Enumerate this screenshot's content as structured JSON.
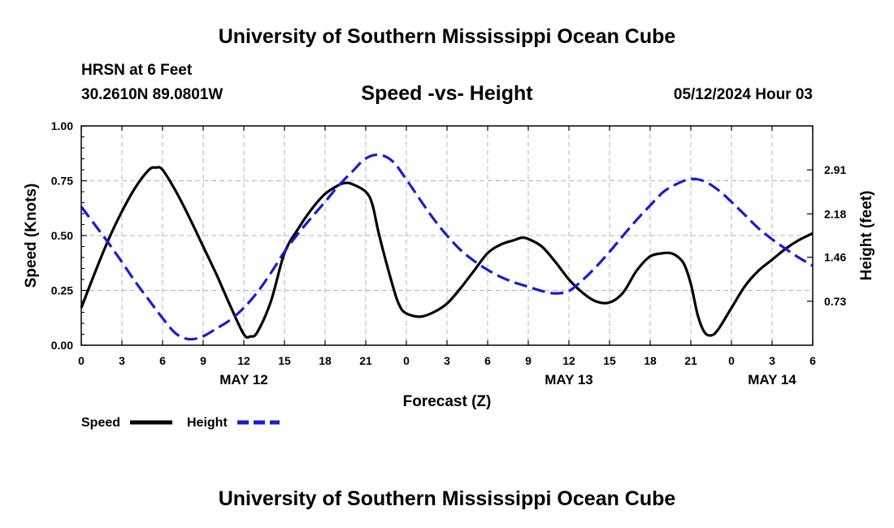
{
  "header": {
    "title_top": "University of Southern Mississippi Ocean Cube",
    "title_bottom": "University of Southern Mississippi Ocean Cube",
    "station": "HRSN at 6 Feet",
    "coords": "30.2610N  89.0801W",
    "plot_title": "Speed -vs- Height",
    "timestamp": "05/12/2024 Hour 03"
  },
  "chart_data": {
    "type": "line",
    "title": "Speed -vs- Height",
    "xlabel": "Forecast (Z)",
    "ylabel": "Speed (Knots)",
    "y2label": "Height (feet)",
    "x_range_hours": [
      0,
      54
    ],
    "ylim": [
      0,
      1.0
    ],
    "y2lim": [
      0,
      3.64
    ],
    "x_ticks": [
      "0",
      "3",
      "6",
      "9",
      "12",
      "15",
      "18",
      "21",
      "0",
      "3",
      "6",
      "9",
      "12",
      "15",
      "18",
      "21",
      "0",
      "3",
      "6"
    ],
    "y_ticks": [
      "0.00",
      "0.25",
      "0.50",
      "0.75",
      "1.00"
    ],
    "y2_ticks": [
      {
        "value": 0.73,
        "label": "0.73"
      },
      {
        "value": 1.46,
        "label": "1.46"
      },
      {
        "value": 2.18,
        "label": "2.18"
      },
      {
        "value": 2.91,
        "label": "2.91"
      }
    ],
    "date_labels": [
      {
        "hour": 12,
        "label": "MAY 12"
      },
      {
        "hour": 36,
        "label": "MAY 13"
      },
      {
        "hour": 51,
        "label": "MAY 14"
      }
    ],
    "grid": true,
    "legend": [
      "Speed",
      "Height"
    ],
    "series": [
      {
        "name": "Speed",
        "axis": "left",
        "color": "#000000",
        "dash": "solid",
        "points": [
          [
            0,
            0.17
          ],
          [
            1,
            0.33
          ],
          [
            2,
            0.48
          ],
          [
            3,
            0.61
          ],
          [
            4,
            0.72
          ],
          [
            5,
            0.8
          ],
          [
            5.5,
            0.81
          ],
          [
            6,
            0.8
          ],
          [
            7,
            0.7
          ],
          [
            8,
            0.58
          ],
          [
            9,
            0.45
          ],
          [
            10,
            0.32
          ],
          [
            11,
            0.18
          ],
          [
            12,
            0.05
          ],
          [
            12.5,
            0.04
          ],
          [
            13,
            0.06
          ],
          [
            14,
            0.2
          ],
          [
            15,
            0.42
          ],
          [
            16,
            0.53
          ],
          [
            17,
            0.62
          ],
          [
            18,
            0.69
          ],
          [
            19,
            0.73
          ],
          [
            19.5,
            0.74
          ],
          [
            20,
            0.735
          ],
          [
            21,
            0.7
          ],
          [
            21.5,
            0.64
          ],
          [
            22,
            0.5
          ],
          [
            23,
            0.27
          ],
          [
            23.5,
            0.18
          ],
          [
            24,
            0.145
          ],
          [
            25,
            0.13
          ],
          [
            26,
            0.15
          ],
          [
            27,
            0.19
          ],
          [
            28,
            0.26
          ],
          [
            29,
            0.34
          ],
          [
            30,
            0.42
          ],
          [
            31,
            0.46
          ],
          [
            32,
            0.48
          ],
          [
            32.5,
            0.49
          ],
          [
            33,
            0.485
          ],
          [
            34,
            0.45
          ],
          [
            35,
            0.38
          ],
          [
            36,
            0.3
          ],
          [
            37,
            0.24
          ],
          [
            38,
            0.2
          ],
          [
            39,
            0.195
          ],
          [
            40,
            0.24
          ],
          [
            41,
            0.34
          ],
          [
            42,
            0.405
          ],
          [
            43,
            0.42
          ],
          [
            43.5,
            0.42
          ],
          [
            44,
            0.405
          ],
          [
            44.5,
            0.37
          ],
          [
            45,
            0.28
          ],
          [
            45.5,
            0.14
          ],
          [
            46,
            0.06
          ],
          [
            46.5,
            0.045
          ],
          [
            47,
            0.07
          ],
          [
            48,
            0.17
          ],
          [
            49,
            0.27
          ],
          [
            50,
            0.34
          ],
          [
            51,
            0.39
          ],
          [
            52,
            0.44
          ],
          [
            53,
            0.48
          ],
          [
            54,
            0.51
          ]
        ]
      },
      {
        "name": "Height",
        "axis": "right",
        "color": "#1a1ad6",
        "dash": "dashed",
        "points": [
          [
            0,
            2.3
          ],
          [
            1,
            2.0
          ],
          [
            2,
            1.7
          ],
          [
            3,
            1.38
          ],
          [
            4,
            1.05
          ],
          [
            5,
            0.75
          ],
          [
            6,
            0.45
          ],
          [
            7,
            0.19
          ],
          [
            8,
            0.1
          ],
          [
            9,
            0.15
          ],
          [
            10,
            0.28
          ],
          [
            11,
            0.42
          ],
          [
            12,
            0.62
          ],
          [
            13,
            0.88
          ],
          [
            14,
            1.2
          ],
          [
            15,
            1.55
          ],
          [
            16,
            1.85
          ],
          [
            17,
            2.12
          ],
          [
            18,
            2.38
          ],
          [
            19,
            2.65
          ],
          [
            20,
            2.88
          ],
          [
            21,
            3.1
          ],
          [
            22,
            3.16
          ],
          [
            23,
            3.05
          ],
          [
            24,
            2.75
          ],
          [
            25,
            2.42
          ],
          [
            26,
            2.1
          ],
          [
            27,
            1.82
          ],
          [
            28,
            1.58
          ],
          [
            29,
            1.4
          ],
          [
            30,
            1.25
          ],
          [
            31,
            1.13
          ],
          [
            32,
            1.04
          ],
          [
            33,
            0.97
          ],
          [
            34,
            0.9
          ],
          [
            35,
            0.86
          ],
          [
            36,
            0.9
          ],
          [
            37,
            1.08
          ],
          [
            38,
            1.3
          ],
          [
            39,
            1.55
          ],
          [
            40,
            1.82
          ],
          [
            41,
            2.08
          ],
          [
            42,
            2.32
          ],
          [
            43,
            2.55
          ],
          [
            44,
            2.68
          ],
          [
            45,
            2.76
          ],
          [
            46,
            2.72
          ],
          [
            47,
            2.58
          ],
          [
            48,
            2.38
          ],
          [
            49,
            2.16
          ],
          [
            50,
            1.94
          ],
          [
            51,
            1.76
          ],
          [
            52,
            1.6
          ],
          [
            53,
            1.45
          ],
          [
            54,
            1.32
          ]
        ]
      }
    ]
  }
}
